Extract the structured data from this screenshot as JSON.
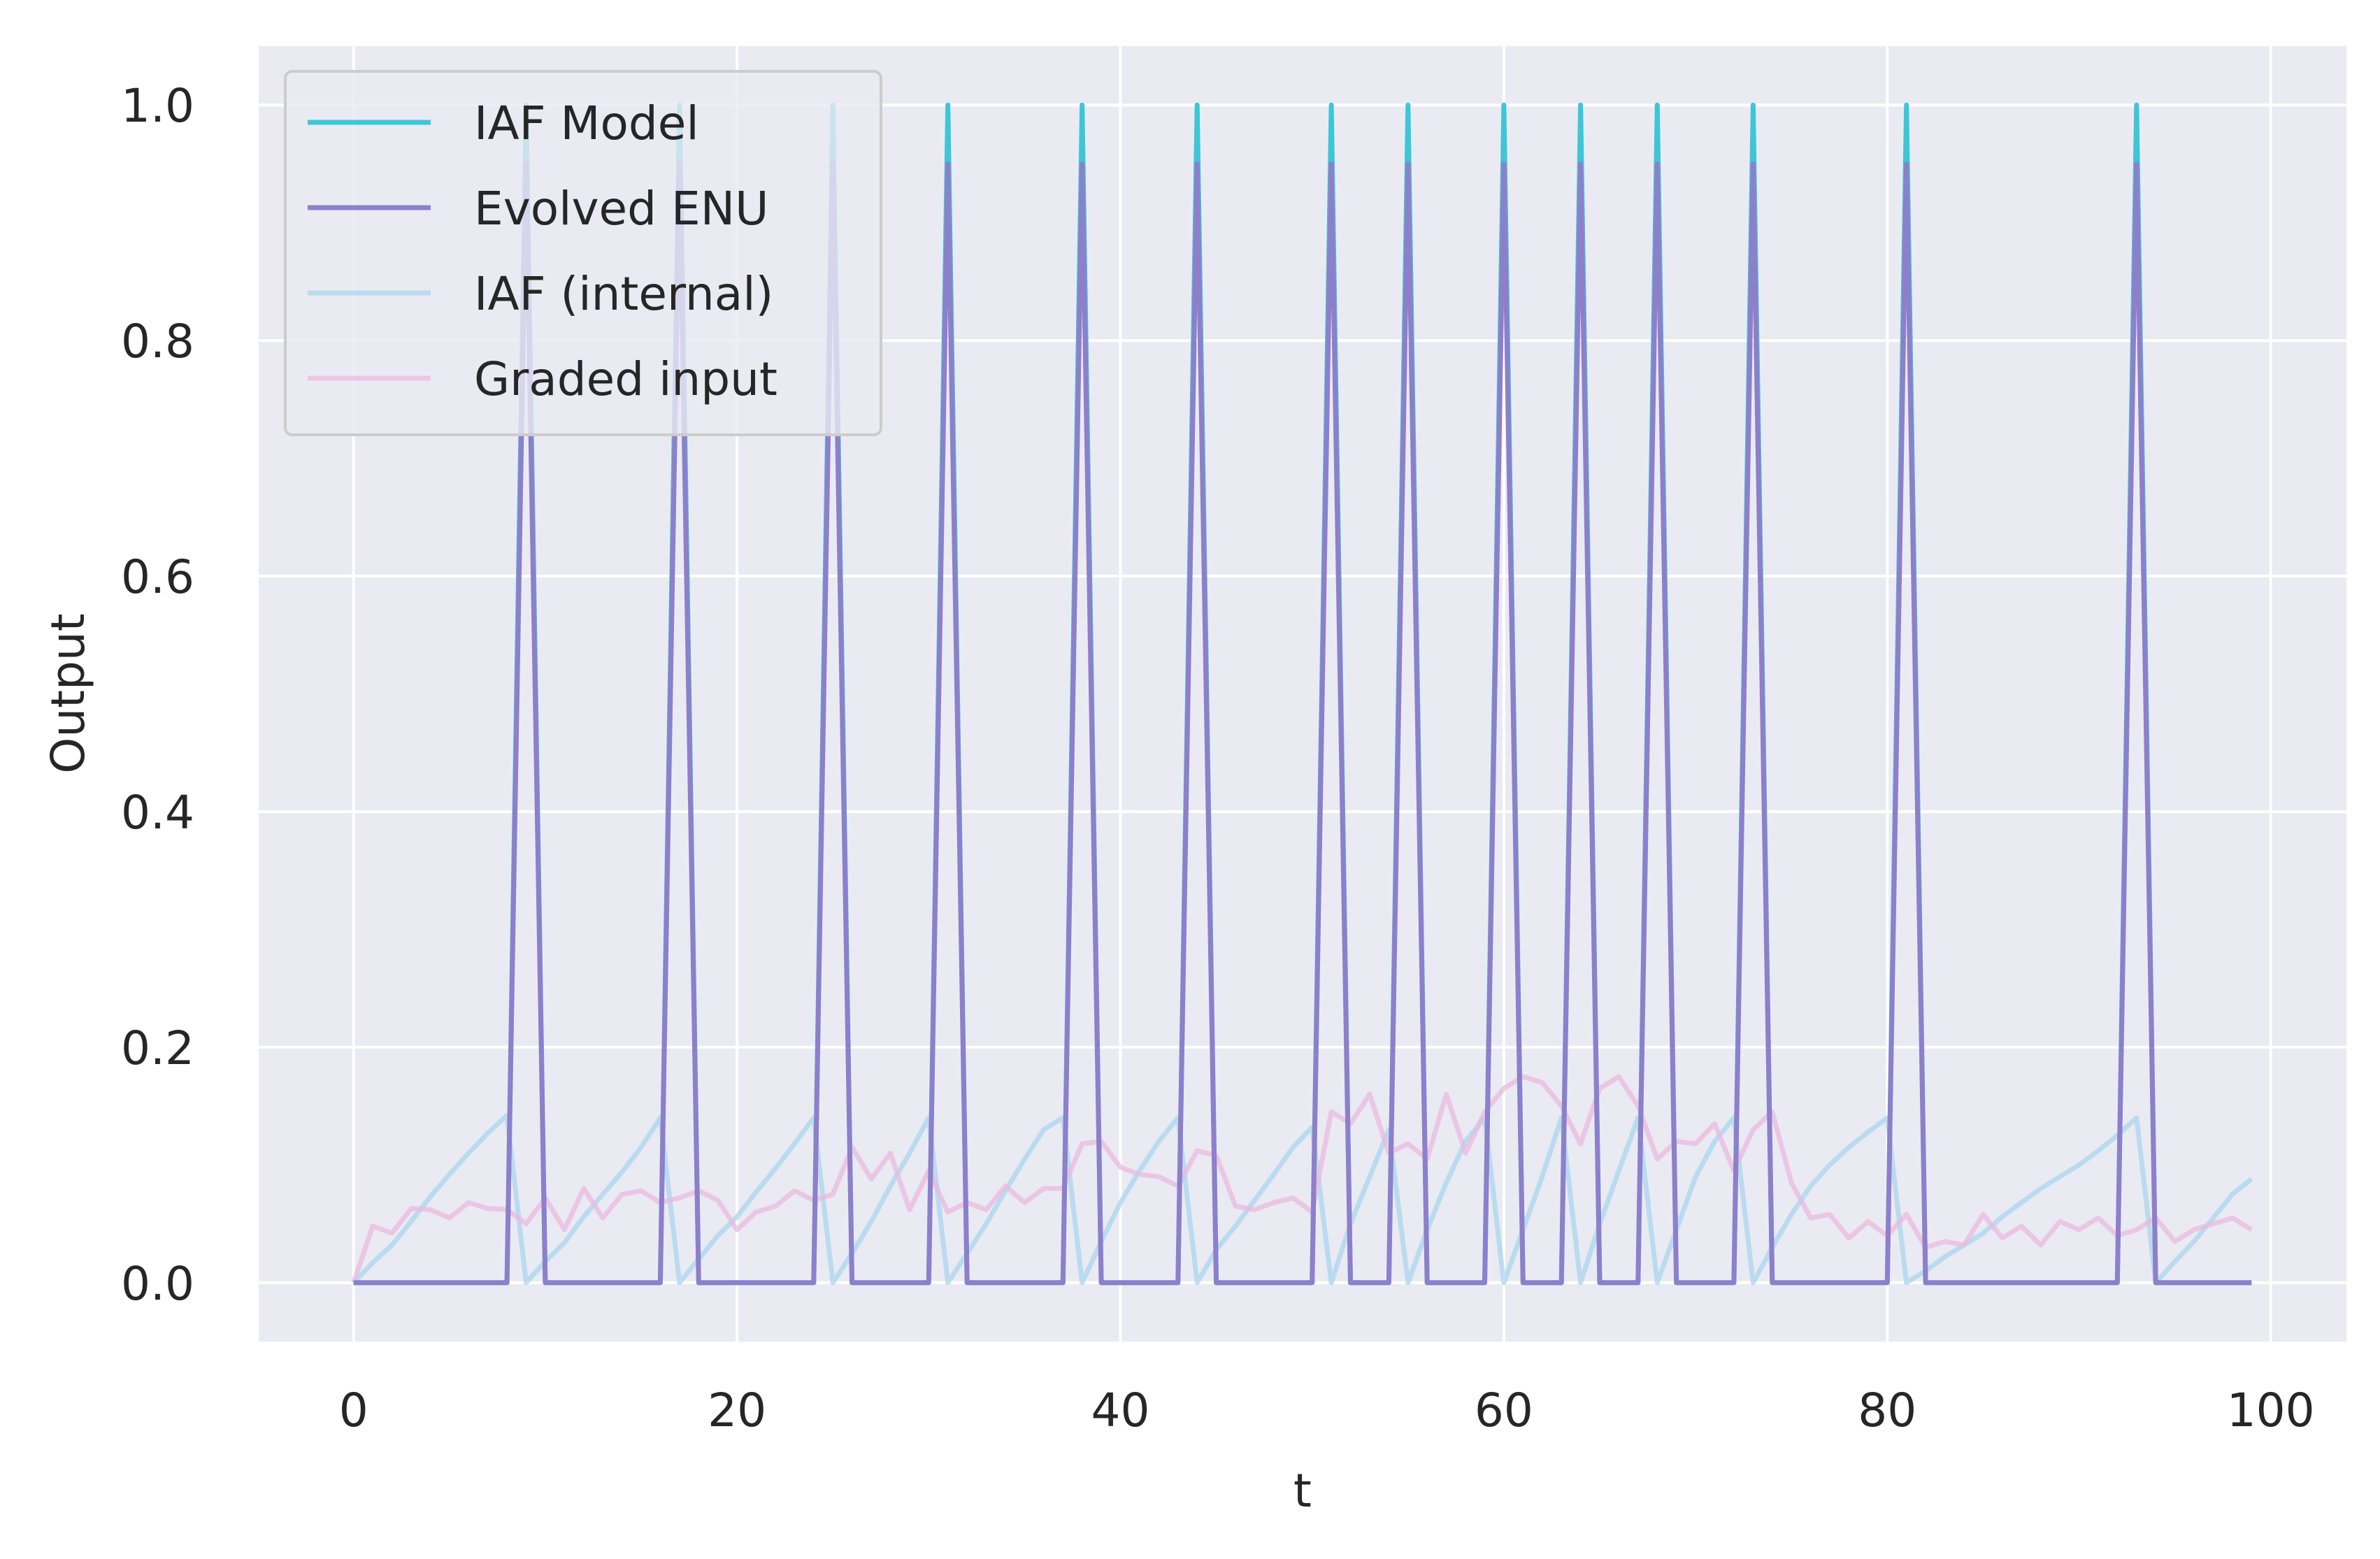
{
  "chart_data": {
    "type": "line",
    "title": "",
    "xlabel": "t",
    "ylabel": "Output",
    "xlim": [
      -4.95,
      103.95
    ],
    "ylim": [
      -0.05,
      1.05
    ],
    "xticks": [
      0,
      20,
      40,
      60,
      80,
      100
    ],
    "yticks": [
      0.0,
      0.2,
      0.4,
      0.6,
      0.8,
      1.0
    ],
    "xtick_labels": [
      "0",
      "20",
      "40",
      "60",
      "80",
      "100"
    ],
    "ytick_labels": [
      "0.0",
      "0.2",
      "0.4",
      "0.6",
      "0.8",
      "1.0"
    ],
    "grid": true,
    "legend_position": "top-left",
    "background": "#eaeaf2",
    "series": [
      {
        "name": "IAF Model",
        "color": "#3ec6d6",
        "opacity": 1.0,
        "spike_times": [
          9,
          17,
          25,
          31,
          38,
          44,
          51,
          55,
          60,
          64,
          68,
          73,
          81,
          93
        ],
        "spike_value": 1.0,
        "baseline": 0.0,
        "x_range": [
          0,
          99
        ]
      },
      {
        "name": "Evolved ENU",
        "color": "#8e7fcb",
        "opacity": 1.0,
        "spike_times": [
          9,
          17,
          25,
          31,
          38,
          44,
          51,
          55,
          60,
          64,
          68,
          73,
          81,
          93
        ],
        "spike_value": 0.95,
        "baseline": 0.0,
        "x_range": [
          0,
          99
        ]
      },
      {
        "name": "IAF (internal)",
        "color": "#a9d6ee",
        "opacity": 0.75,
        "x": [
          0,
          1,
          2,
          3,
          4,
          5,
          6,
          7,
          8,
          9,
          10,
          11,
          12,
          13,
          14,
          15,
          16,
          17,
          18,
          19,
          20,
          21,
          22,
          23,
          24,
          25,
          26,
          27,
          28,
          29,
          30,
          31,
          32,
          33,
          34,
          35,
          36,
          37,
          38,
          39,
          40,
          41,
          42,
          43,
          44,
          45,
          46,
          47,
          48,
          49,
          50,
          51,
          52,
          53,
          54,
          55,
          56,
          57,
          58,
          59,
          60,
          61,
          62,
          63,
          64,
          65,
          66,
          67,
          68,
          69,
          70,
          71,
          72,
          73,
          74,
          75,
          76,
          77,
          78,
          79,
          80,
          81,
          82,
          83,
          84,
          85,
          86,
          87,
          88,
          89,
          90,
          91,
          92,
          93,
          94,
          95,
          96,
          97,
          98,
          99
        ],
        "values": [
          0.0,
          0.017,
          0.032,
          0.052,
          0.073,
          0.092,
          0.11,
          0.127,
          0.142,
          0.0,
          0.018,
          0.034,
          0.056,
          0.075,
          0.094,
          0.115,
          0.14,
          0.0,
          0.02,
          0.04,
          0.056,
          0.077,
          0.097,
          0.118,
          0.14,
          0.0,
          0.025,
          0.052,
          0.082,
          0.11,
          0.14,
          0.0,
          0.025,
          0.05,
          0.078,
          0.105,
          0.13,
          0.14,
          0.0,
          0.035,
          0.068,
          0.095,
          0.12,
          0.14,
          0.0,
          0.028,
          0.048,
          0.07,
          0.092,
          0.115,
          0.132,
          0.0,
          0.05,
          0.09,
          0.13,
          0.0,
          0.045,
          0.085,
          0.12,
          0.14,
          0.0,
          0.045,
          0.09,
          0.14,
          0.0,
          0.05,
          0.095,
          0.14,
          0.0,
          0.045,
          0.09,
          0.12,
          0.14,
          0.0,
          0.03,
          0.058,
          0.082,
          0.1,
          0.115,
          0.128,
          0.14,
          0.0,
          0.01,
          0.022,
          0.032,
          0.042,
          0.056,
          0.068,
          0.08,
          0.09,
          0.1,
          0.112,
          0.125,
          0.14,
          0.0,
          0.018,
          0.035,
          0.055,
          0.075,
          0.088
        ]
      },
      {
        "name": "Graded input",
        "color": "#eab9df",
        "opacity": 0.75,
        "x": [
          0,
          1,
          2,
          3,
          4,
          5,
          6,
          7,
          8,
          9,
          10,
          11,
          12,
          13,
          14,
          15,
          16,
          17,
          18,
          19,
          20,
          21,
          22,
          23,
          24,
          25,
          26,
          27,
          28,
          29,
          30,
          31,
          32,
          33,
          34,
          35,
          36,
          37,
          38,
          39,
          40,
          41,
          42,
          43,
          44,
          45,
          46,
          47,
          48,
          49,
          50,
          51,
          52,
          53,
          54,
          55,
          56,
          57,
          58,
          59,
          60,
          61,
          62,
          63,
          64,
          65,
          66,
          67,
          68,
          69,
          70,
          71,
          72,
          73,
          74,
          75,
          76,
          77,
          78,
          79,
          80,
          81,
          82,
          83,
          84,
          85,
          86,
          87,
          88,
          89,
          90,
          91,
          92,
          93,
          94,
          95,
          96,
          97,
          98,
          99
        ],
        "values": [
          0.0,
          0.048,
          0.042,
          0.063,
          0.062,
          0.055,
          0.068,
          0.063,
          0.062,
          0.05,
          0.072,
          0.045,
          0.08,
          0.055,
          0.075,
          0.078,
          0.068,
          0.072,
          0.078,
          0.07,
          0.045,
          0.06,
          0.065,
          0.078,
          0.07,
          0.075,
          0.115,
          0.088,
          0.11,
          0.062,
          0.095,
          0.06,
          0.068,
          0.062,
          0.082,
          0.068,
          0.08,
          0.08,
          0.118,
          0.12,
          0.098,
          0.092,
          0.09,
          0.082,
          0.112,
          0.108,
          0.065,
          0.062,
          0.068,
          0.072,
          0.06,
          0.145,
          0.135,
          0.16,
          0.11,
          0.118,
          0.105,
          0.16,
          0.11,
          0.145,
          0.165,
          0.175,
          0.17,
          0.15,
          0.118,
          0.165,
          0.175,
          0.15,
          0.105,
          0.12,
          0.118,
          0.135,
          0.095,
          0.13,
          0.145,
          0.085,
          0.055,
          0.058,
          0.038,
          0.052,
          0.04,
          0.058,
          0.03,
          0.035,
          0.032,
          0.058,
          0.038,
          0.048,
          0.032,
          0.052,
          0.045,
          0.055,
          0.04,
          0.045,
          0.055,
          0.035,
          0.045,
          0.05,
          0.055,
          0.045
        ]
      }
    ]
  }
}
